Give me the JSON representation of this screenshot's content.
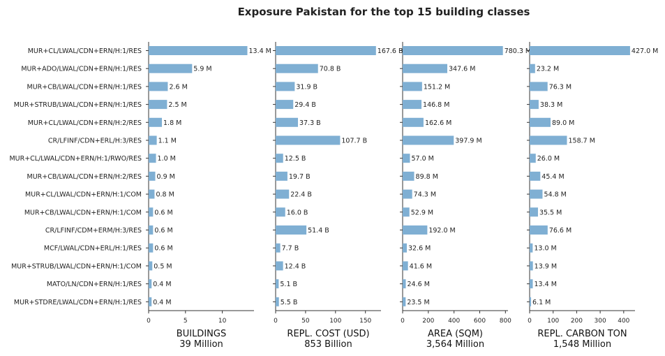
{
  "title": "Exposure Pakistan for the top 15 building classes",
  "chart_data": {
    "type": "bar",
    "orientation": "horizontal",
    "categories": [
      "MUR+CL/LWAL/CDN+ERN/H:1/RES",
      "MUR+ADO/LWAL/CDN+ERN/H:1/RES",
      "MUR+CB/LWAL/CDN+ERN/H:1/RES",
      "MUR+STRUB/LWAL/CDN+ERN/H:1/RES",
      "MUR+CL/LWAL/CDN+ERN/H:2/RES",
      "CR/LFINF/CDN+ERL/H:3/RES",
      "MUR+CL/LWAL/CDN+ERN/H:1/RWO/RES",
      "MUR+CB/LWAL/CDN+ERN/H:2/RES",
      "MUR+CL/LWAL/CDN+ERN/H:1/COM",
      "MUR+CB/LWAL/CDN+ERN/H:1/COM",
      "CR/LFINF/CDM+ERM/H:3/RES",
      "MCF/LWAL/CDN+ERL/H:1/RES",
      "MUR+STRUB/LWAL/CDN+ERN/H:1/COM",
      "MATO/LN/CDN+ERN/H:1/RES",
      "MUR+STDRE/LWAL/CDN+ERN/H:1/RES"
    ],
    "bar_color": "#7fafd3",
    "panels": [
      {
        "xlabel": "BUILDINGS",
        "total": "39 Million",
        "xlim": [
          0,
          14.3
        ],
        "ticks": [
          0,
          5,
          10
        ],
        "tick_labels": [
          "0",
          "5",
          "10"
        ],
        "values": [
          13.4,
          5.9,
          2.6,
          2.5,
          1.8,
          1.1,
          1.0,
          0.9,
          0.8,
          0.6,
          0.6,
          0.6,
          0.5,
          0.4,
          0.4
        ],
        "labels": [
          "13.4 M",
          "5.9 M",
          "2.6 M",
          "2.5 M",
          "1.8 M",
          "1.1 M",
          "1.0 M",
          "0.9 M",
          "0.8 M",
          "0.6 M",
          "0.6 M",
          "0.6 M",
          "0.5 M",
          "0.4 M",
          "0.4 M"
        ]
      },
      {
        "xlabel": "REPL. COST (USD)",
        "total": "853 Billion",
        "xlim": [
          0,
          176
        ],
        "ticks": [
          0,
          50,
          100,
          150
        ],
        "tick_labels": [
          "0",
          "50",
          "100",
          "150"
        ],
        "values": [
          167.6,
          70.8,
          31.9,
          29.4,
          37.3,
          107.7,
          12.5,
          19.7,
          22.4,
          16.0,
          51.4,
          7.7,
          12.4,
          5.1,
          5.5
        ],
        "labels": [
          "167.6 B",
          "70.8 B",
          "31.9 B",
          "29.4 B",
          "37.3 B",
          "107.7 B",
          "12.5 B",
          "19.7 B",
          "22.4 B",
          "16.0 B",
          "51.4 B",
          "7.7 B",
          "12.4 B",
          "5.1 B",
          "5.5 B"
        ]
      },
      {
        "xlabel": "AREA (SQM)",
        "total": "3,564 Million",
        "xlim": [
          0,
          820
        ],
        "ticks": [
          0,
          200,
          400,
          600,
          800
        ],
        "tick_labels": [
          "0",
          "200",
          "400",
          "600",
          "800"
        ],
        "values": [
          780.3,
          347.6,
          151.2,
          146.8,
          162.6,
          397.9,
          57.0,
          89.8,
          74.3,
          52.9,
          192.0,
          32.6,
          41.6,
          24.6,
          23.5
        ],
        "labels": [
          "780.3 M",
          "347.6 M",
          "151.2 M",
          "146.8 M",
          "162.6 M",
          "397.9 M",
          "57.0 M",
          "89.8 M",
          "74.3 M",
          "52.9 M",
          "192.0 M",
          "32.6 M",
          "41.6 M",
          "24.6 M",
          "23.5 M"
        ]
      },
      {
        "xlabel": "REPL. CARBON TON",
        "total": "1,548 Million",
        "xlim": [
          0,
          448
        ],
        "ticks": [
          0,
          100,
          200,
          300,
          400
        ],
        "tick_labels": [
          "0",
          "100",
          "200",
          "300",
          "400"
        ],
        "values": [
          427.0,
          23.2,
          76.3,
          38.3,
          89.0,
          158.7,
          26.0,
          45.4,
          54.8,
          35.5,
          76.6,
          13.0,
          13.9,
          13.4,
          6.1
        ],
        "labels": [
          "427.0 M",
          "23.2 M",
          "76.3 M",
          "38.3 M",
          "89.0 M",
          "158.7 M",
          "26.0 M",
          "45.4 M",
          "54.8 M",
          "35.5 M",
          "76.6 M",
          "13.0 M",
          "13.9 M",
          "13.4 M",
          "6.1 M"
        ]
      }
    ]
  }
}
